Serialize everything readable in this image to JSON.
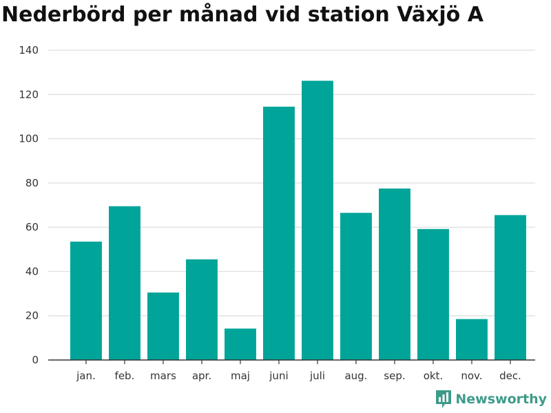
{
  "chart_data": {
    "type": "bar",
    "title": "Nederbörd per månad vid station Växjö A",
    "xlabel": "",
    "ylabel": "",
    "categories": [
      "jan.",
      "feb.",
      "mars",
      "apr.",
      "maj",
      "juni",
      "juli",
      "aug.",
      "sep.",
      "okt.",
      "nov.",
      "dec."
    ],
    "values": [
      53.5,
      69.5,
      30.5,
      45.5,
      14.2,
      114.5,
      126.2,
      66.5,
      77.5,
      59.2,
      18.5,
      65.5
    ],
    "ylim": [
      0,
      140
    ],
    "yticks": [
      0,
      20,
      40,
      60,
      80,
      100,
      120,
      140
    ],
    "grid": true,
    "legend": "none",
    "bar_color": "#00a499",
    "grid_color": "#dddddd",
    "axis_color": "#333333"
  },
  "brand": {
    "name": "Newsworthy",
    "color": "#3d9b8a"
  }
}
